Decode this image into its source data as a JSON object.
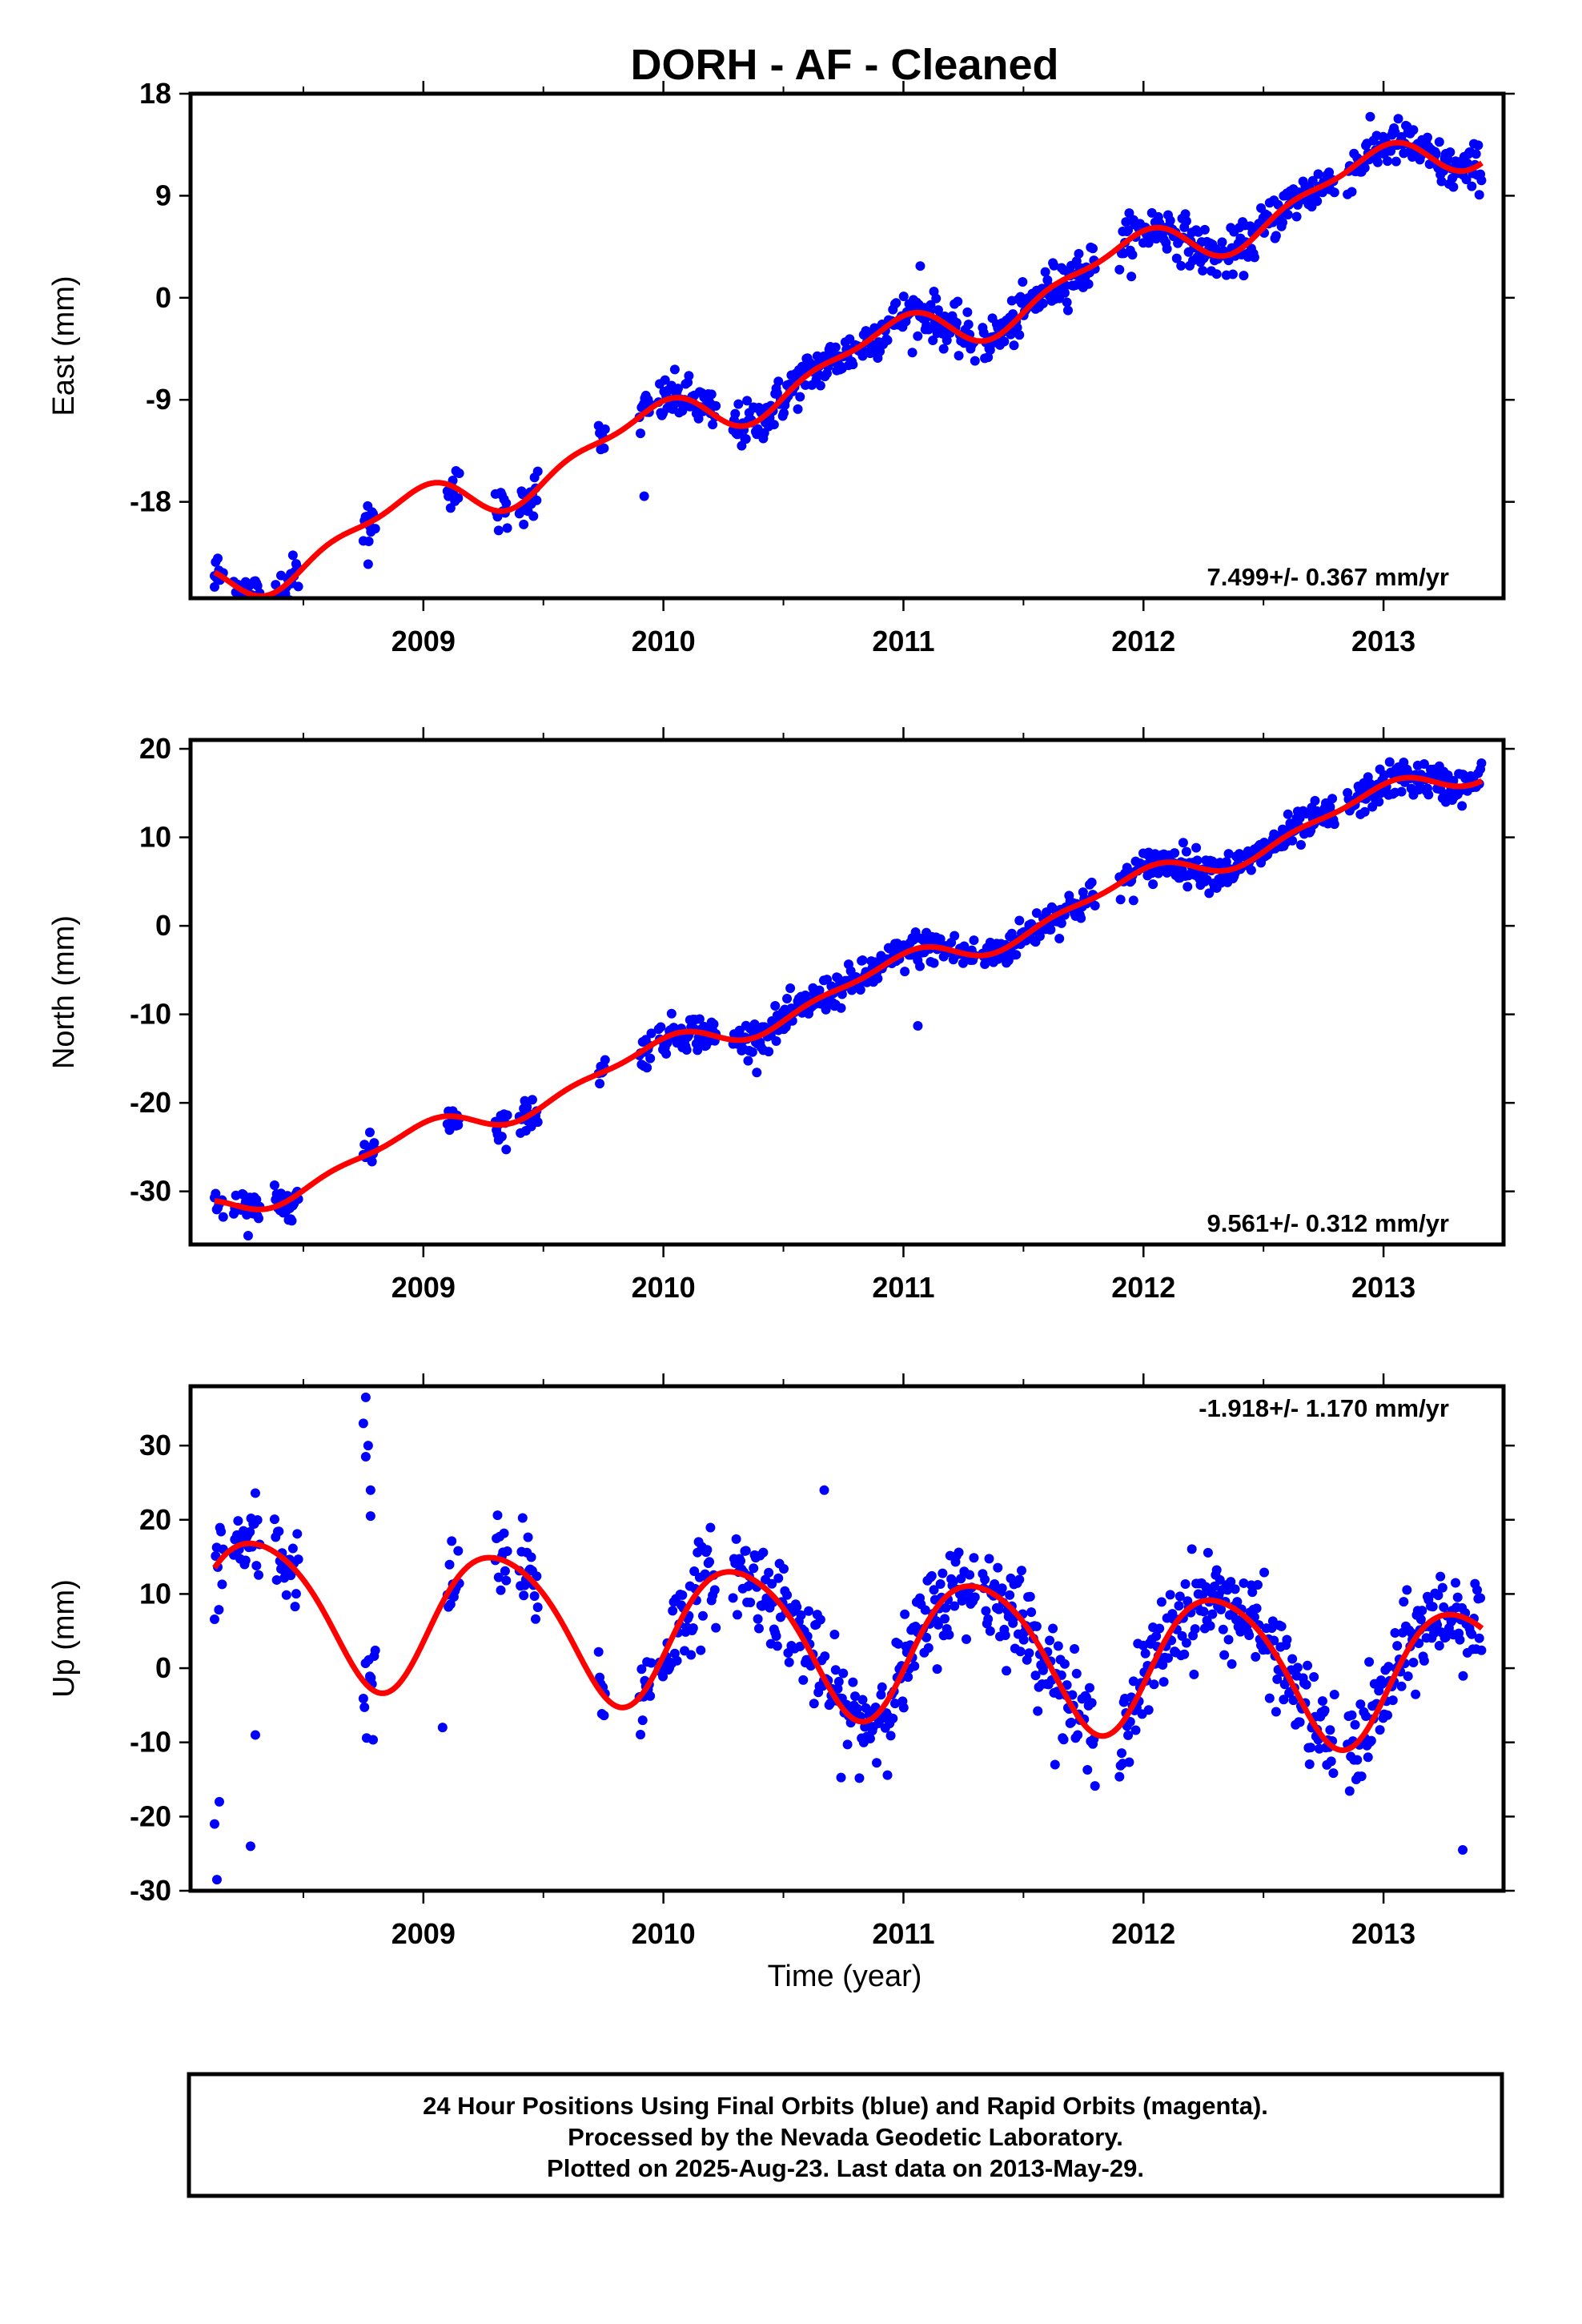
{
  "title": "DORH  - AF - Cleaned",
  "xlabel": "Time (year)",
  "footer": {
    "line1": "24 Hour Positions Using Final Orbits (blue) and Rapid Orbits (magenta).",
    "line2": "Processed by the Nevada Geodetic Laboratory.",
    "line3": "Plotted on 2025-Aug-23. Last data on 2013-May-29."
  },
  "colors": {
    "points": "#0000ff",
    "model": "#ff0000",
    "axes": "#000000"
  },
  "chart_data": [
    {
      "type": "scatter",
      "component": "east",
      "ylabel": "East (mm)",
      "rate_text": "7.499+/- 0.367 mm/yr",
      "rate_position": "bottom-right",
      "xlim": [
        2008.03,
        2013.5
      ],
      "ylim": [
        -26.5,
        18
      ],
      "xticks": [
        "2009",
        "2010",
        "2011",
        "2012",
        "2013"
      ],
      "yticks": [
        "18",
        "9",
        "0",
        "-9",
        "-18"
      ],
      "ytick_values": [
        18,
        9,
        0,
        -9,
        -18
      ],
      "data_span": [
        2008.13,
        2013.41
      ],
      "model": {
        "rate": 7.499,
        "offset": -5.5,
        "amp_annual": 2.0,
        "phase_annual": 2.1,
        "amp_semi": 0.8,
        "phase_semi": 0.6,
        "ref": 2010.77
      },
      "outliers": [
        [
          2011.07,
          2.8
        ],
        [
          2008.13,
          -25.5
        ],
        [
          2008.77,
          -23.5
        ],
        [
          2009.92,
          -17.5
        ]
      ],
      "series": [
        {
          "name": "Final Orbits",
          "marker": "blue dot"
        },
        {
          "name": "Model",
          "marker": "red line"
        }
      ]
    },
    {
      "type": "scatter",
      "component": "north",
      "ylabel": "North (mm)",
      "rate_text": "9.561+/- 0.312 mm/yr",
      "rate_position": "bottom-right",
      "xlim": [
        2008.03,
        2013.5
      ],
      "ylim": [
        -36,
        21
      ],
      "xticks": [
        "2009",
        "2010",
        "2011",
        "2012",
        "2013"
      ],
      "yticks": [
        "20",
        "10",
        "0",
        "-10",
        "-20",
        "-30"
      ],
      "ytick_values": [
        20,
        10,
        0,
        -10,
        -20,
        -30
      ],
      "data_span": [
        2008.13,
        2013.41
      ],
      "model": {
        "rate": 9.561,
        "offset": -7.0,
        "amp_annual": 1.5,
        "phase_annual": 1.9,
        "amp_semi": 0.6,
        "phase_semi": 0.4,
        "ref": 2010.77
      },
      "outliers": [
        [
          2011.06,
          -11.3
        ],
        [
          2008.27,
          -35.0
        ]
      ],
      "series": [
        {
          "name": "Final Orbits",
          "marker": "blue dot"
        },
        {
          "name": "Model",
          "marker": "red line"
        }
      ]
    },
    {
      "type": "scatter",
      "component": "up",
      "ylabel": "Up (mm)",
      "rate_text": "-1.918+/- 1.170 mm/yr",
      "rate_position": "top-right",
      "xlim": [
        2008.03,
        2013.5
      ],
      "ylim": [
        -30,
        38
      ],
      "xticks": [
        "2009",
        "2010",
        "2011",
        "2012",
        "2013"
      ],
      "yticks": [
        "30",
        "20",
        "10",
        "0",
        "-10",
        "-20",
        "-30"
      ],
      "ytick_values": [
        30,
        20,
        10,
        0,
        -10,
        -20,
        -30
      ],
      "data_span": [
        2008.13,
        2013.41
      ],
      "model": {
        "rate": -1.918,
        "offset": 3.5,
        "amp_annual": 9.5,
        "phase_annual": -0.4,
        "amp_semi": 1.2,
        "phase_semi": 0.3,
        "ref": 2010.77
      },
      "outliers": [
        [
          2008.76,
          36.5
        ],
        [
          2008.75,
          33.0
        ],
        [
          2008.77,
          30.0
        ],
        [
          2008.76,
          28.5
        ],
        [
          2008.78,
          24.0
        ],
        [
          2008.78,
          20.5
        ],
        [
          2008.14,
          -28.5
        ],
        [
          2008.13,
          -21.0
        ],
        [
          2008.15,
          -18.0
        ],
        [
          2008.28,
          -24.0
        ],
        [
          2008.3,
          -9.0
        ],
        [
          2010.67,
          24.0
        ],
        [
          2013.33,
          -24.5
        ],
        [
          2009.08,
          -8.0
        ]
      ],
      "series": [
        {
          "name": "Final Orbits",
          "marker": "blue dot"
        },
        {
          "name": "Model",
          "marker": "red line"
        }
      ]
    }
  ]
}
